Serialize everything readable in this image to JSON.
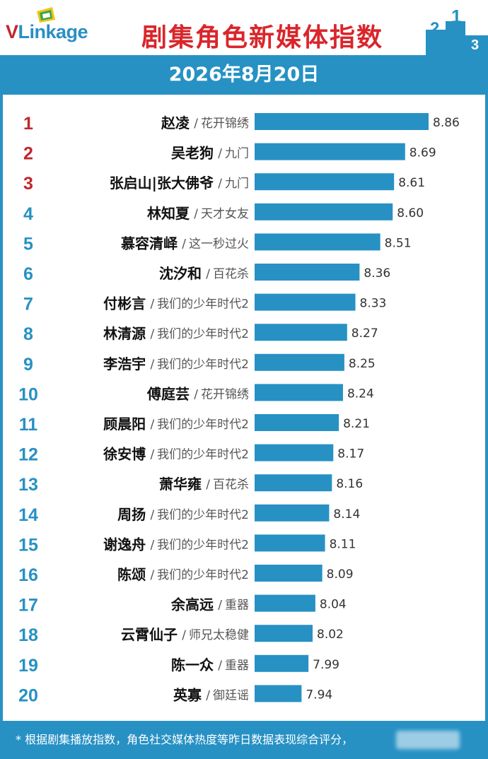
{
  "header": {
    "logo_text_v": "V",
    "logo_text_rest": "Linkage",
    "title": "剧集角色新媒体指数",
    "podium_numbers": [
      "2",
      "1",
      "3"
    ]
  },
  "date": "2026年8月20日",
  "footer": {
    "note": "* 根据剧集播放指数，角色社交媒体热度等昨日数据表现综合评分，"
  },
  "colors": {
    "bar": "#2791c4",
    "rank_top3": "#c0262d",
    "rank_other": "#2791c4",
    "title": "#d9262c"
  },
  "chart_data": {
    "type": "bar",
    "orientation": "horizontal",
    "title": "剧集角色新媒体指数",
    "subtitle": "2026年8月20日",
    "xlim": [
      7.6,
      8.95
    ],
    "rows": [
      {
        "rank": "1",
        "name": "赵凌",
        "show": "花开锦绣",
        "value": 8.86
      },
      {
        "rank": "2",
        "name": "吴老狗",
        "show": "九门",
        "value": 8.69
      },
      {
        "rank": "3",
        "name": "张启山|张大佛爷",
        "show": "九门",
        "value": 8.61
      },
      {
        "rank": "4",
        "name": "林知夏",
        "show": "天才女友",
        "value": 8.6
      },
      {
        "rank": "5",
        "name": "慕容清峄",
        "show": "这一秒过火",
        "value": 8.51
      },
      {
        "rank": "6",
        "name": "沈汐和",
        "show": "百花杀",
        "value": 8.36
      },
      {
        "rank": "7",
        "name": "付彬言",
        "show": "我们的少年时代2",
        "value": 8.33
      },
      {
        "rank": "8",
        "name": "林清源",
        "show": "我们的少年时代2",
        "value": 8.27
      },
      {
        "rank": "9",
        "name": "李浩宇",
        "show": "我们的少年时代2",
        "value": 8.25
      },
      {
        "rank": "10",
        "name": "傅庭芸",
        "show": "花开锦绣",
        "value": 8.24
      },
      {
        "rank": "11",
        "name": "顾晨阳",
        "show": "我们的少年时代2",
        "value": 8.21
      },
      {
        "rank": "12",
        "name": "徐安博",
        "show": "我们的少年时代2",
        "value": 8.17
      },
      {
        "rank": "13",
        "name": "萧华雍",
        "show": "百花杀",
        "value": 8.16
      },
      {
        "rank": "14",
        "name": "周扬",
        "show": "我们的少年时代2",
        "value": 8.14
      },
      {
        "rank": "15",
        "name": "谢逸舟",
        "show": "我们的少年时代2",
        "value": 8.11
      },
      {
        "rank": "16",
        "name": "陈颂",
        "show": "我们的少年时代2",
        "value": 8.09
      },
      {
        "rank": "17",
        "name": "余高远",
        "show": "重器",
        "value": 8.04
      },
      {
        "rank": "18",
        "name": "云霄仙子",
        "show": "师兄太稳健",
        "value": 8.02
      },
      {
        "rank": "19",
        "name": "陈一众",
        "show": "重器",
        "value": 7.99
      },
      {
        "rank": "20",
        "name": "英寡",
        "show": "御廷谣",
        "value": 7.94
      }
    ]
  }
}
